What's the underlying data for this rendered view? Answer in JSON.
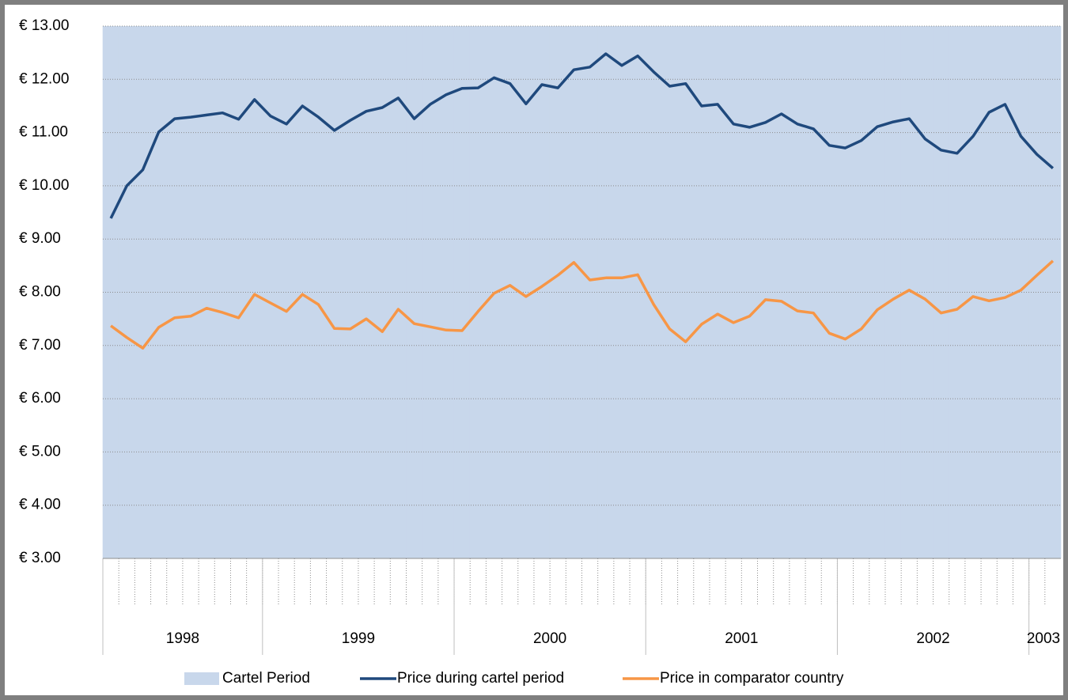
{
  "chart_data": {
    "type": "line",
    "categories": [
      null,
      null,
      null,
      null,
      null,
      null,
      null,
      null,
      null,
      null,
      null,
      null,
      null,
      null,
      null,
      null,
      null,
      null,
      null,
      null,
      null,
      null,
      null,
      null,
      null,
      null,
      null,
      null,
      null,
      null,
      null,
      null,
      null,
      null,
      null,
      null,
      null,
      null,
      null,
      null,
      null,
      null,
      null,
      null,
      null,
      null,
      null,
      null,
      null,
      null,
      null,
      null,
      null,
      null,
      null,
      null,
      null,
      null,
      null,
      null
    ],
    "x_groups": [
      {
        "label": "1998",
        "span": 10
      },
      {
        "label": "1999",
        "span": 12
      },
      {
        "label": "2000",
        "span": 12
      },
      {
        "label": "2001",
        "span": 12
      },
      {
        "label": "2002",
        "span": 12
      },
      {
        "label": "2003",
        "span": 2
      }
    ],
    "series": [
      {
        "name": "Cartel Period",
        "type": "bar",
        "color": "#c8d7eb",
        "values": [
          13,
          13,
          13,
          13,
          13,
          13,
          13,
          13,
          13,
          13,
          13,
          13,
          13,
          13,
          13,
          13,
          13,
          13,
          13,
          13,
          13,
          13,
          13,
          13,
          13,
          13,
          13,
          13,
          13,
          13,
          13,
          13,
          13,
          13,
          13,
          13,
          13,
          13,
          13,
          13,
          13,
          13,
          13,
          13,
          13,
          13,
          13,
          13,
          13,
          13,
          13,
          13,
          13,
          13,
          13,
          13,
          13,
          13,
          13,
          13
        ]
      },
      {
        "name": "Price during cartel period",
        "type": "line",
        "color": "#1f497d",
        "values": [
          9.39,
          10.0,
          10.3,
          11.01,
          11.26,
          11.29,
          11.33,
          11.37,
          11.25,
          11.62,
          11.31,
          11.16,
          11.5,
          11.29,
          11.04,
          11.23,
          11.4,
          11.47,
          11.65,
          11.26,
          11.53,
          11.71,
          11.83,
          11.84,
          12.03,
          11.92,
          11.54,
          11.9,
          11.84,
          12.18,
          12.23,
          12.48,
          12.26,
          12.44,
          12.14,
          11.87,
          11.92,
          11.5,
          11.53,
          11.16,
          11.1,
          11.19,
          11.35,
          11.16,
          11.07,
          10.76,
          10.71,
          10.85,
          11.11,
          11.2,
          11.26,
          10.88,
          10.67,
          10.61,
          10.93,
          11.38,
          11.53,
          10.93,
          10.59,
          10.33
        ]
      },
      {
        "name": "Price in comparator country",
        "type": "line",
        "color": "#f79646",
        "values": [
          7.37,
          7.15,
          6.95,
          7.34,
          7.52,
          7.55,
          7.7,
          7.62,
          7.52,
          7.96,
          7.8,
          7.64,
          7.96,
          7.77,
          7.32,
          7.31,
          7.5,
          7.26,
          7.68,
          7.41,
          7.35,
          7.29,
          7.28,
          7.64,
          7.98,
          8.13,
          7.92,
          8.11,
          8.32,
          8.56,
          8.23,
          8.27,
          8.27,
          8.33,
          7.77,
          7.31,
          7.07,
          7.4,
          7.59,
          7.43,
          7.55,
          7.86,
          7.83,
          7.65,
          7.61,
          7.23,
          7.12,
          7.31,
          7.67,
          7.87,
          8.04,
          7.87,
          7.61,
          7.68,
          7.92,
          7.84,
          7.9,
          8.04,
          8.32,
          8.59
        ]
      }
    ],
    "ylim": [
      3,
      13
    ],
    "yticks": [
      {
        "value": 3,
        "label": "€ 3.00"
      },
      {
        "value": 4,
        "label": "€ 4.00"
      },
      {
        "value": 5,
        "label": "€ 5.00"
      },
      {
        "value": 6,
        "label": "€ 6.00"
      },
      {
        "value": 7,
        "label": "€ 7.00"
      },
      {
        "value": 8,
        "label": "€ 8.00"
      },
      {
        "value": 9,
        "label": "€ 9.00"
      },
      {
        "value": 10,
        "label": "€ 10.00"
      },
      {
        "value": 11,
        "label": "€ 11.00"
      },
      {
        "value": 12,
        "label": "€ 12.00"
      },
      {
        "value": 13,
        "label": "€ 13.00"
      }
    ],
    "grid": true,
    "legend": "bottom"
  }
}
